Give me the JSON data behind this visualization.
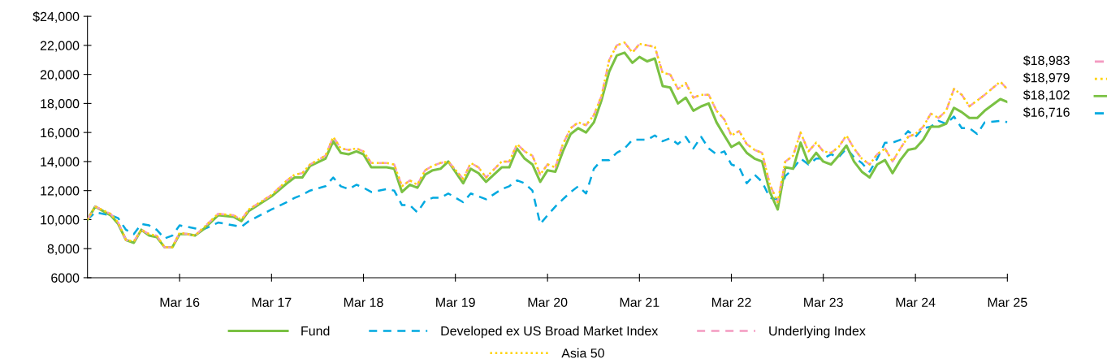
{
  "chart_data": {
    "type": "line",
    "x": [
      "2015-03",
      "2015-04",
      "2015-06",
      "2015-07",
      "2015-08",
      "2015-09",
      "2015-10",
      "2015-11",
      "2015-12",
      "2016-01",
      "2016-02",
      "2016-03",
      "2016-04",
      "2016-05",
      "2016-06",
      "2016-08",
      "2016-10",
      "2016-11",
      "2016-12",
      "2017-03",
      "2017-05",
      "2017-06",
      "2017-07",
      "2017-08",
      "2017-10",
      "2017-11",
      "2017-12",
      "2018-01",
      "2018-02",
      "2018-03",
      "2018-04",
      "2018-06",
      "2018-07",
      "2018-08",
      "2018-09",
      "2018-10",
      "2018-11",
      "2018-12",
      "2019-01",
      "2019-02",
      "2019-04",
      "2019-05",
      "2019-06",
      "2019-07",
      "2019-09",
      "2019-10",
      "2019-11",
      "2019-12",
      "2020-01",
      "2020-02",
      "2020-03",
      "2020-04",
      "2020-05",
      "2020-06",
      "2020-07",
      "2020-08",
      "2020-09",
      "2020-10",
      "2020-11",
      "2020-12",
      "2021-01",
      "2021-02",
      "2021-03",
      "2021-04",
      "2021-05",
      "2021-06",
      "2021-07",
      "2021-08",
      "2021-09",
      "2021-10",
      "2021-11",
      "2021-12",
      "2022-01",
      "2022-02",
      "2022-03",
      "2022-04",
      "2022-05",
      "2022-06",
      "2022-07",
      "2022-08",
      "2022-09",
      "2022-10",
      "2022-11",
      "2022-12",
      "2023-01",
      "2023-02",
      "2023-03",
      "2023-04",
      "2023-05",
      "2023-06",
      "2023-07",
      "2023-08",
      "2023-09",
      "2023-10",
      "2023-11",
      "2023-12",
      "2024-01",
      "2024-02",
      "2024-03",
      "2024-04",
      "2024-05",
      "2024-06",
      "2024-07",
      "2024-08",
      "2024-09",
      "2024-10",
      "2024-11",
      "2024-12",
      "2025-02",
      "2025-03"
    ],
    "series": [
      {
        "name": "Developed ex US Broad Market Index",
        "color": "#00a9e0",
        "line_style": "dashed",
        "values": [
          10000,
          10500,
          10300,
          10100,
          9300,
          9000,
          9700,
          9600,
          9300,
          8700,
          8900,
          9600,
          9500,
          9400,
          9300,
          9800,
          9600,
          9500,
          9900,
          10700,
          11200,
          11500,
          11700,
          12000,
          12300,
          12900,
          12300,
          12100,
          12400,
          12200,
          11900,
          12100,
          12000,
          11000,
          11000,
          10500,
          11300,
          11500,
          11500,
          11800,
          11200,
          11800,
          11600,
          11400,
          12100,
          12300,
          12700,
          12500,
          12000,
          9700,
          10300,
          10900,
          11400,
          11900,
          12300,
          11800,
          13500,
          14100,
          14100,
          14600,
          14900,
          15500,
          15500,
          15500,
          15800,
          15400,
          15600,
          15200,
          15700,
          14900,
          15700,
          14900,
          14500,
          14700,
          13800,
          13600,
          12500,
          13100,
          12600,
          11500,
          11400,
          13000,
          13500,
          14200,
          13800,
          14200,
          14200,
          14500,
          14300,
          14900,
          14300,
          13900,
          13300,
          14200,
          15300,
          15300,
          15500,
          16100,
          15700,
          16300,
          16400,
          16800,
          16600,
          17100,
          16300,
          16300,
          15900,
          16700,
          16800,
          16716
        ]
      },
      {
        "name": "Fund",
        "color": "#7ac143",
        "line_style": "solid",
        "values": [
          10000,
          10900,
          10300,
          9700,
          8600,
          8400,
          9300,
          8900,
          8800,
          8100,
          8100,
          9000,
          9000,
          8900,
          9300,
          10300,
          10200,
          9900,
          10600,
          11600,
          12500,
          12900,
          12900,
          13700,
          14200,
          15400,
          14600,
          14500,
          14700,
          14500,
          13600,
          13600,
          13500,
          11900,
          12400,
          12200,
          13100,
          13400,
          13500,
          14000,
          12500,
          13500,
          13200,
          12600,
          13600,
          13600,
          14900,
          14200,
          13800,
          12600,
          13400,
          13300,
          14700,
          15900,
          16300,
          16000,
          16700,
          18200,
          20200,
          21300,
          21500,
          20800,
          21200,
          20900,
          21100,
          19200,
          19100,
          18000,
          18400,
          17500,
          17800,
          18000,
          16700,
          15800,
          15000,
          15300,
          14600,
          14200,
          14000,
          11900,
          10700,
          13600,
          13500,
          15300,
          13900,
          14600,
          14000,
          13800,
          14400,
          15100,
          14000,
          13300,
          12900,
          13800,
          14100,
          13200,
          14100,
          14800,
          14900,
          15500,
          16400,
          16400,
          16600,
          17700,
          17400,
          17000,
          17000,
          17500,
          18300,
          18102
        ]
      },
      {
        "name": "Underlying Index",
        "color": "#f49ac1",
        "line_style": "dashed",
        "values": [
          10000,
          10900,
          10400,
          9800,
          8600,
          8500,
          9300,
          9000,
          8900,
          8100,
          8100,
          9100,
          9000,
          8900,
          9400,
          10400,
          10300,
          10000,
          10700,
          11700,
          12700,
          13100,
          13200,
          13800,
          14400,
          15700,
          14900,
          14800,
          14900,
          14700,
          13900,
          13900,
          13800,
          12300,
          12700,
          12400,
          13400,
          13700,
          13900,
          14000,
          12800,
          13900,
          13600,
          12900,
          14000,
          14000,
          15200,
          14700,
          14400,
          13100,
          13800,
          13600,
          15200,
          16300,
          16700,
          16500,
          17200,
          18500,
          21000,
          22000,
          22200,
          21500,
          22100,
          22000,
          21900,
          20100,
          20000,
          19000,
          19400,
          18400,
          18600,
          18600,
          17500,
          16900,
          15800,
          16100,
          15200,
          14800,
          14600,
          12400,
          11200,
          14000,
          14400,
          16000,
          14700,
          15300,
          14700,
          14600,
          15000,
          15800,
          14900,
          14200,
          13800,
          14500,
          14900,
          14000,
          14900,
          15700,
          15900,
          16400,
          17300,
          17000,
          17500,
          19000,
          18600,
          17800,
          18200,
          18600,
          19500,
          18983
        ]
      },
      {
        "name": "Asia 50",
        "color": "#ffd200",
        "line_style": "dotted",
        "values": [
          10000,
          10900,
          10400,
          9800,
          8600,
          8500,
          9300,
          9000,
          8900,
          8100,
          8100,
          9100,
          9000,
          8900,
          9400,
          10400,
          10300,
          10000,
          10700,
          11700,
          12700,
          13100,
          13200,
          13800,
          14400,
          15700,
          14900,
          14800,
          14900,
          14700,
          13900,
          13900,
          13800,
          12300,
          12700,
          12400,
          13400,
          13700,
          13900,
          14000,
          12800,
          13900,
          13600,
          12900,
          14000,
          14000,
          15200,
          14700,
          14400,
          13100,
          13800,
          13600,
          15200,
          16300,
          16700,
          16500,
          17200,
          18500,
          21000,
          22000,
          22200,
          21500,
          22100,
          22000,
          21900,
          20100,
          20000,
          19000,
          19400,
          18400,
          18600,
          18600,
          17500,
          16900,
          15800,
          16100,
          15200,
          14800,
          14600,
          12400,
          11200,
          14000,
          14400,
          16000,
          14700,
          15300,
          14700,
          14600,
          15000,
          15800,
          14900,
          14200,
          13800,
          14500,
          14900,
          14000,
          14900,
          15700,
          15900,
          16400,
          17300,
          17000,
          17500,
          19000,
          18600,
          17800,
          18200,
          18600,
          19500,
          18979
        ]
      }
    ],
    "annotations": [
      {
        "text": "$18,983",
        "x": "2025-03",
        "y": 18983
      },
      {
        "text": "$18,979",
        "x": "2025-03",
        "y": 18979
      },
      {
        "text": "$18,102",
        "x": "2025-03",
        "y": 18102
      },
      {
        "text": "$16,716",
        "x": "2025-03",
        "y": 16716
      }
    ],
    "xlim": [
      "2015-03",
      "2025-03"
    ],
    "xticks": [
      {
        "value": "2016-03",
        "label": "Mar 16"
      },
      {
        "value": "2017-03",
        "label": "Mar 17"
      },
      {
        "value": "2018-03",
        "label": "Mar 18"
      },
      {
        "value": "2019-03",
        "label": "Mar 19"
      },
      {
        "value": "2020-03",
        "label": "Mar 20"
      },
      {
        "value": "2021-03",
        "label": "Mar 21"
      },
      {
        "value": "2022-03",
        "label": "Mar 22"
      },
      {
        "value": "2023-03",
        "label": "Mar 23"
      },
      {
        "value": "2024-03",
        "label": "Mar 24"
      },
      {
        "value": "2025-03",
        "label": "Mar 25"
      }
    ],
    "ylim": [
      6000,
      24000
    ],
    "yticks": [
      6000,
      {
        "value": 8000,
        "label": "8,000"
      },
      {
        "value": 10000,
        "label": "10,000"
      },
      {
        "value": 12000,
        "label": "12,000"
      },
      {
        "value": 14000,
        "label": "14,000"
      },
      {
        "value": 16000,
        "label": "16,000"
      },
      {
        "value": 18000,
        "label": "18,000"
      },
      {
        "value": 20000,
        "label": "20,000"
      },
      {
        "value": 22000,
        "label": "22,000"
      },
      {
        "value": 24000,
        "label": "$24,000"
      }
    ],
    "grid": false,
    "legend": "bottom",
    "marker": "none"
  }
}
